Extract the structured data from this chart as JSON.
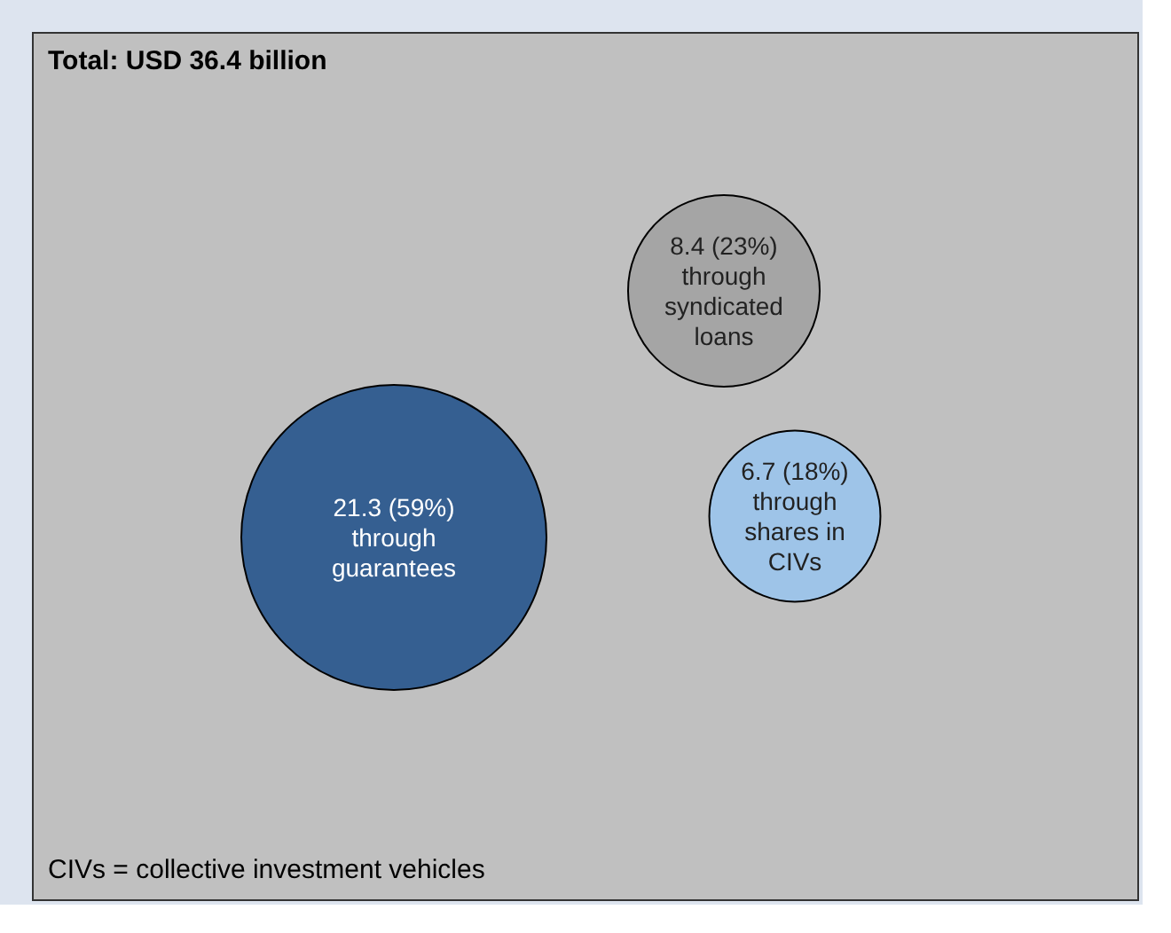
{
  "chart_data": {
    "type": "other",
    "title": "Total: USD 36.4 billion",
    "categories": [
      "through guarantees",
      "through syndicated loans",
      "through shares in CIVs"
    ],
    "values": [
      21.3,
      8.4,
      6.7
    ],
    "value_labels": [
      "21.3 (59%)",
      "8.4 (23%)",
      "6.7 (18%)"
    ],
    "colors": [
      "#355f91",
      "#a5a5a5",
      "#9ec4e8"
    ],
    "annotations": [
      "CIVs = collective investment vehicles"
    ]
  }
}
